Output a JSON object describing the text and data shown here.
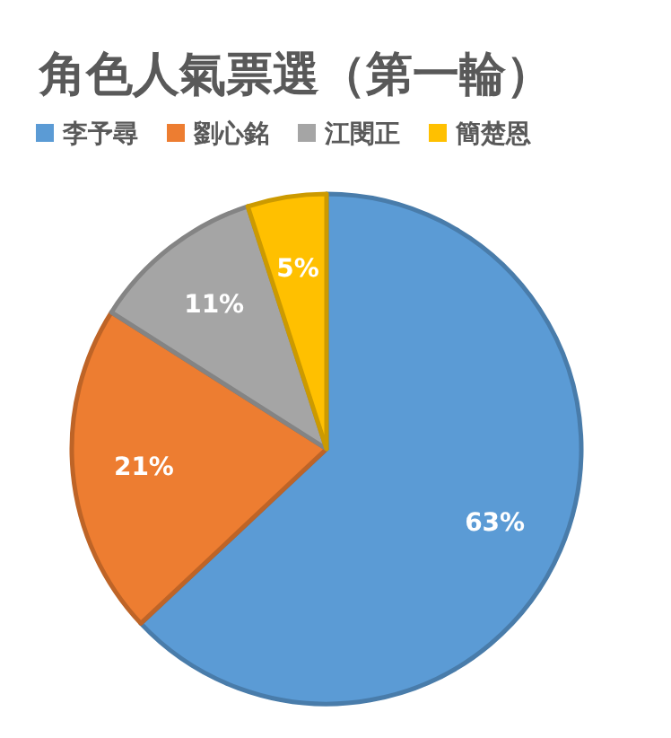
{
  "chart_data": {
    "type": "pie",
    "title": "角色人氣票選（第一輪）",
    "categories": [
      "李予尋",
      "劉心銘",
      "江閔正",
      "簡楚恩"
    ],
    "values": [
      63,
      21,
      11,
      5
    ],
    "value_labels": [
      "63%",
      "21%",
      "11%",
      "5%"
    ],
    "colors": [
      "#5b9bd5",
      "#ed7d31",
      "#a5a5a5",
      "#ffc000"
    ],
    "legend": "top"
  }
}
